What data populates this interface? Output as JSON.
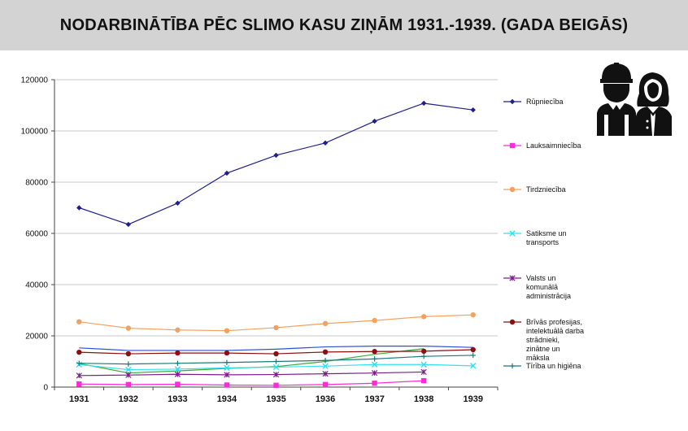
{
  "title": "NODARBINĀTĪBA PĒC SLIMO KASU ZIŅĀM 1931.-1939. (GADA BEIGĀS)",
  "icon": "workers-icon",
  "chart_data": {
    "type": "line",
    "title": "NODARBINĀTĪBA PĒC SLIMO KASU ZIŅĀM 1931.-1939. (GADA BEIGĀS)",
    "categories": [
      "1931",
      "1932",
      "1933",
      "1934",
      "1935",
      "1936",
      "1937",
      "1938",
      "1939"
    ],
    "ylim": [
      0,
      120000
    ],
    "yticks": [
      0,
      20000,
      40000,
      60000,
      80000,
      100000,
      120000
    ],
    "grid": true,
    "legend_position": "right",
    "series": [
      {
        "name": "Rūpniecība",
        "color": "#1f1f8a",
        "marker": "diamond",
        "values": [
          70000,
          63500,
          71800,
          83500,
          90500,
          95300,
          103800,
          110800,
          108200
        ]
      },
      {
        "name": "Lauksaimniecība",
        "color": "#ff2bd6",
        "marker": "square",
        "values": [
          1200,
          1000,
          1100,
          800,
          700,
          1000,
          1500,
          2500,
          null
        ]
      },
      {
        "name": "Tirdzniecība",
        "color": "#f4a060",
        "marker": "circle",
        "values": [
          25500,
          23000,
          22300,
          22000,
          23200,
          24800,
          26000,
          27500,
          28200
        ]
      },
      {
        "name": "Satiksme un transports",
        "color": "#33e0f0",
        "marker": "x",
        "values": [
          8800,
          6800,
          7000,
          7500,
          7800,
          8200,
          8800,
          8800,
          8300
        ]
      },
      {
        "name": "Valsts un komunālā administrācija",
        "color": "#7a1d8a",
        "marker": "star",
        "values": [
          4500,
          4700,
          5000,
          4800,
          4900,
          5200,
          5500,
          5900,
          null
        ]
      },
      {
        "name": "Brīvās profesijas, intelektuālā darba strādnieki, zinātne un māksla",
        "color": "#8b0f0f",
        "marker": "circle",
        "values": [
          13600,
          13000,
          13300,
          13300,
          13000,
          13700,
          13900,
          14000,
          14600
        ]
      },
      {
        "name": "Tīrība un higiēna",
        "color": "#1a7a7a",
        "marker": "plus",
        "values": [
          9300,
          9000,
          9300,
          9600,
          10000,
          10400,
          11000,
          12000,
          12400
        ]
      },
      {
        "name": "",
        "color": "#2e4fd6",
        "marker": "none",
        "values": [
          15300,
          14300,
          14300,
          14300,
          14800,
          15700,
          16000,
          16000,
          15500
        ]
      },
      {
        "name": "",
        "color": "#3aaa3a",
        "marker": "none",
        "values": [
          9200,
          5500,
          6300,
          7300,
          8000,
          10000,
          12800,
          15000,
          null
        ]
      }
    ]
  }
}
